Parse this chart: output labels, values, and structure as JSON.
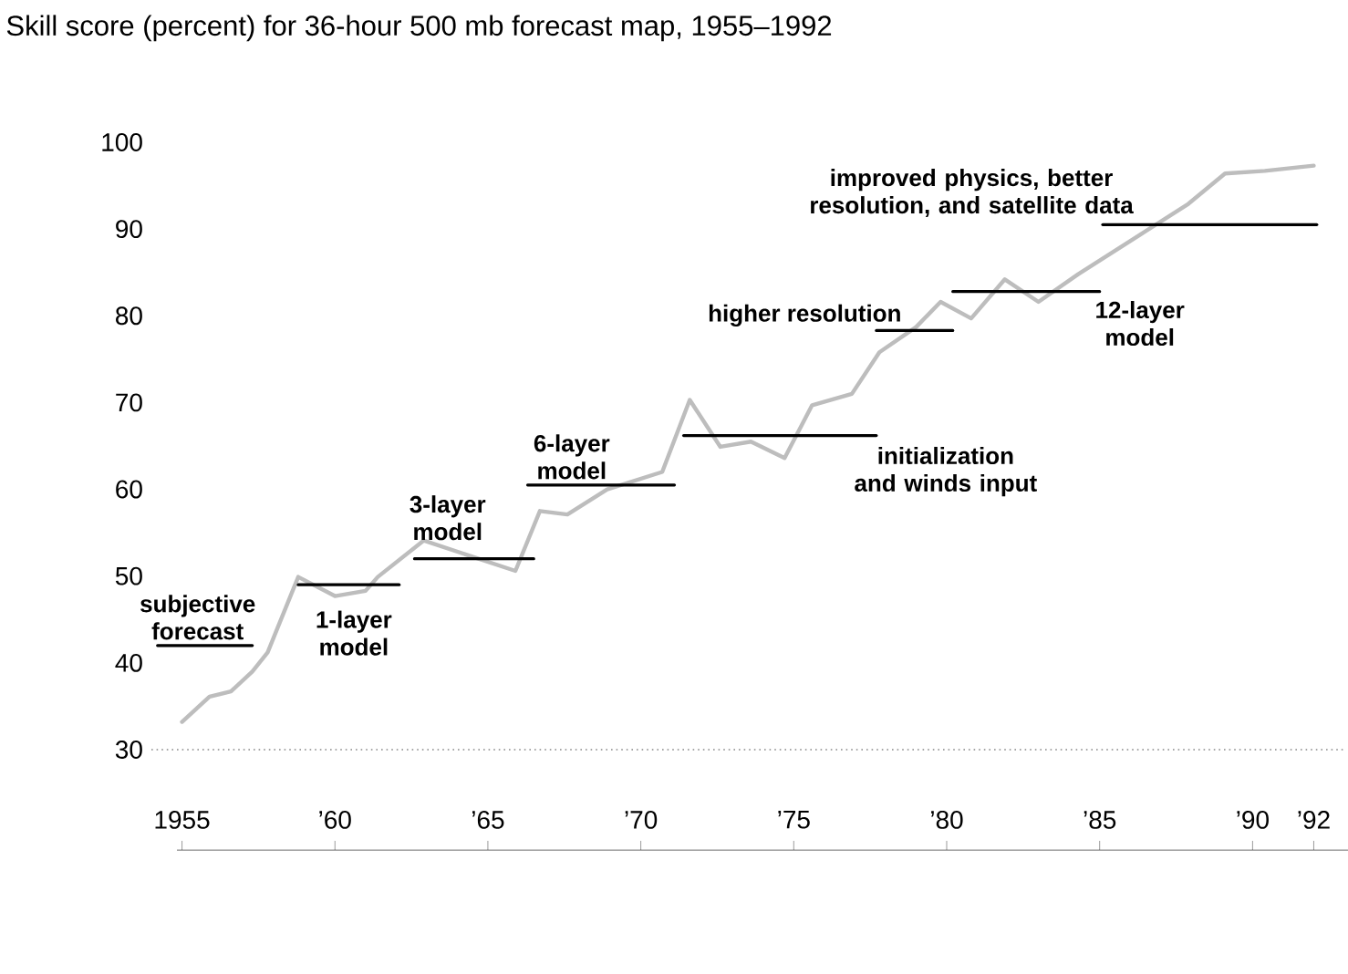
{
  "chart_data": {
    "type": "line",
    "title": "Skill score (percent) for 36-hour 500 mb forecast map, 1955–1992",
    "xlim": [
      1954,
      1993
    ],
    "ylim": [
      30,
      100
    ],
    "xticks": [
      1955,
      {
        "value": 1960,
        "label": "’60"
      },
      {
        "value": 1965,
        "label": "’65"
      },
      {
        "value": 1970,
        "label": "’70"
      },
      {
        "value": 1975,
        "label": "’75"
      },
      {
        "value": 1980,
        "label": "’80"
      },
      {
        "value": 1985,
        "label": "’85"
      },
      {
        "value": 1990,
        "label": "’90"
      },
      {
        "value": 1992,
        "label": "’92"
      }
    ],
    "yticks": [
      30,
      40,
      50,
      60,
      70,
      80,
      90,
      100
    ],
    "grid": false,
    "marker": "none",
    "line_style": "solid",
    "ref_lines": [
      {
        "axis": "y",
        "value": 30,
        "line_style": "dotted",
        "color": "#888888"
      }
    ],
    "series": [
      {
        "color": "#bdbdbd",
        "x": [
          1955.0,
          1955.9,
          1956.6,
          1957.3,
          1957.8,
          1958.8,
          1960.0,
          1961.0,
          1961.4,
          1962.9,
          1965.9,
          1966.7,
          1967.6,
          1968.9,
          1970.7,
          1971.6,
          1972.6,
          1973.6,
          1974.7,
          1975.6,
          1976.9,
          1977.8,
          1979.0,
          1979.8,
          1980.8,
          1981.9,
          1983.0,
          1984.3,
          1986.3,
          1987.9,
          1989.1,
          1990.4,
          1992.0
        ],
        "values": [
          33.2,
          36.1,
          36.7,
          39.0,
          41.2,
          49.9,
          47.7,
          48.3,
          49.9,
          54.1,
          50.6,
          57.5,
          57.1,
          60.0,
          62.0,
          70.3,
          64.9,
          65.5,
          63.6,
          69.7,
          71.0,
          75.8,
          78.7,
          81.6,
          79.7,
          84.2,
          81.6,
          84.8,
          89.3,
          92.9,
          96.4,
          96.7,
          97.3
        ]
      },
      {
        "name": "subjective forecast",
        "color": "#000000",
        "x": [
          1954.2,
          1957.3
        ],
        "values": [
          42,
          42
        ]
      },
      {
        "name": "1-layer model",
        "color": "#000000",
        "x": [
          1958.8,
          1962.1
        ],
        "values": [
          49,
          49
        ]
      },
      {
        "name": "3-layer model",
        "color": "#000000",
        "x": [
          1962.6,
          1966.5
        ],
        "values": [
          52,
          52
        ]
      },
      {
        "name": "6-layer model",
        "color": "#000000",
        "x": [
          1966.3,
          1971.1
        ],
        "values": [
          60.5,
          60.5
        ]
      },
      {
        "name": "initialization and winds input",
        "color": "#000000",
        "x": [
          1971.4,
          1977.7
        ],
        "values": [
          66.2,
          66.2
        ]
      },
      {
        "name": "higher resolution",
        "color": "#000000",
        "x": [
          1977.7,
          1980.2
        ],
        "values": [
          78.3,
          78.3
        ]
      },
      {
        "name": "12-layer model",
        "color": "#000000",
        "x": [
          1980.2,
          1985.0
        ],
        "values": [
          82.8,
          82.8
        ]
      },
      {
        "name": "improved physics, better resolution, and satellite data",
        "color": "#000000",
        "x": [
          1985.1,
          1992.1
        ],
        "values": [
          90.5,
          90.5
        ]
      }
    ]
  }
}
